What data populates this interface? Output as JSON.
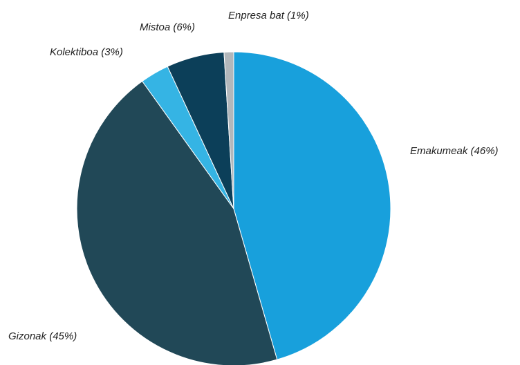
{
  "chart_data": {
    "type": "pie",
    "title": "",
    "start": "top",
    "direction": "clockwise",
    "slices": [
      {
        "label": "Emakumeak (46%)",
        "value": 46,
        "color": "#18a0dc"
      },
      {
        "label": "Gizonak (45%)",
        "value": 45,
        "color": "#214857"
      },
      {
        "label": "Kolektiboa (3%)",
        "value": 3,
        "color": "#35b4e4"
      },
      {
        "label": "Mistoa (6%)",
        "value": 6,
        "color": "#0c3f59"
      },
      {
        "label": "Enpresa bat (1%)",
        "value": 1,
        "color": "#b2b7bb"
      }
    ]
  }
}
